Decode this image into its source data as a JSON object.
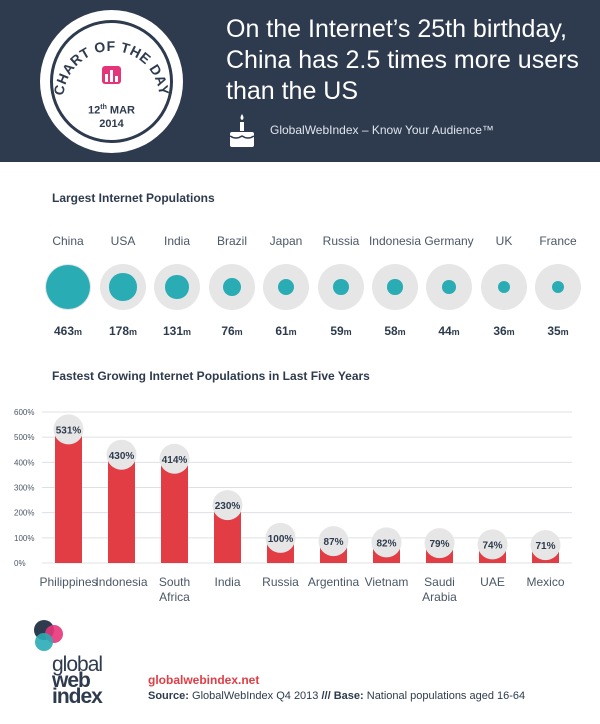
{
  "header": {
    "badge_title": "CHART OF THE DAY",
    "badge_date_day": "12",
    "badge_date_suffix": "th",
    "badge_date_month": "MAR",
    "badge_date_year": "2014",
    "headline_lines": [
      "On the Internet’s 25th birthday,",
      "China has 2.5 times more users",
      "than the US"
    ],
    "brand_tagline": "GlobalWebIndex – Know Your Audience™"
  },
  "populations": {
    "title": "Largest Internet Populations",
    "unit": "m",
    "items": [
      {
        "country": "China",
        "value": 463
      },
      {
        "country": "USA",
        "value": 178
      },
      {
        "country": "India",
        "value": 131
      },
      {
        "country": "Brazil",
        "value": 76
      },
      {
        "country": "Japan",
        "value": 61
      },
      {
        "country": "Russia",
        "value": 59
      },
      {
        "country": "Indonesia",
        "value": 58
      },
      {
        "country": "Germany",
        "value": 44
      },
      {
        "country": "UK",
        "value": 36
      },
      {
        "country": "France",
        "value": 35
      }
    ]
  },
  "chart_data": {
    "type": "bar",
    "title": "Fastest Growing Internet Populations in Last Five Years",
    "categories": [
      "Philippines",
      "Indonesia",
      "South Africa",
      "India",
      "Russia",
      "Argentina",
      "Vietnam",
      "Saudi Arabia",
      "UAE",
      "Mexico"
    ],
    "values": [
      531,
      430,
      414,
      230,
      100,
      87,
      82,
      79,
      74,
      71
    ],
    "ylim": [
      0,
      600
    ],
    "yticks": [
      "0%",
      "100%",
      "200%",
      "300%",
      "400%",
      "500%",
      "600%"
    ],
    "value_suffix": "%",
    "grid": true,
    "bar_color": "#e23d45"
  },
  "footer": {
    "link": "globalwebindex.net",
    "source_label": "Source:",
    "source_text": "GlobalWebIndex Q4 2013",
    "separator": "///",
    "base_label": "Base:",
    "base_text": "National populations aged 16-64",
    "logo_words": [
      "global",
      "web",
      "index"
    ]
  },
  "colors": {
    "header_bg": "#2e3b4e",
    "accent_teal": "#2aacb5",
    "accent_red": "#e23d45",
    "bubble_bg": "#e6e6e6"
  }
}
